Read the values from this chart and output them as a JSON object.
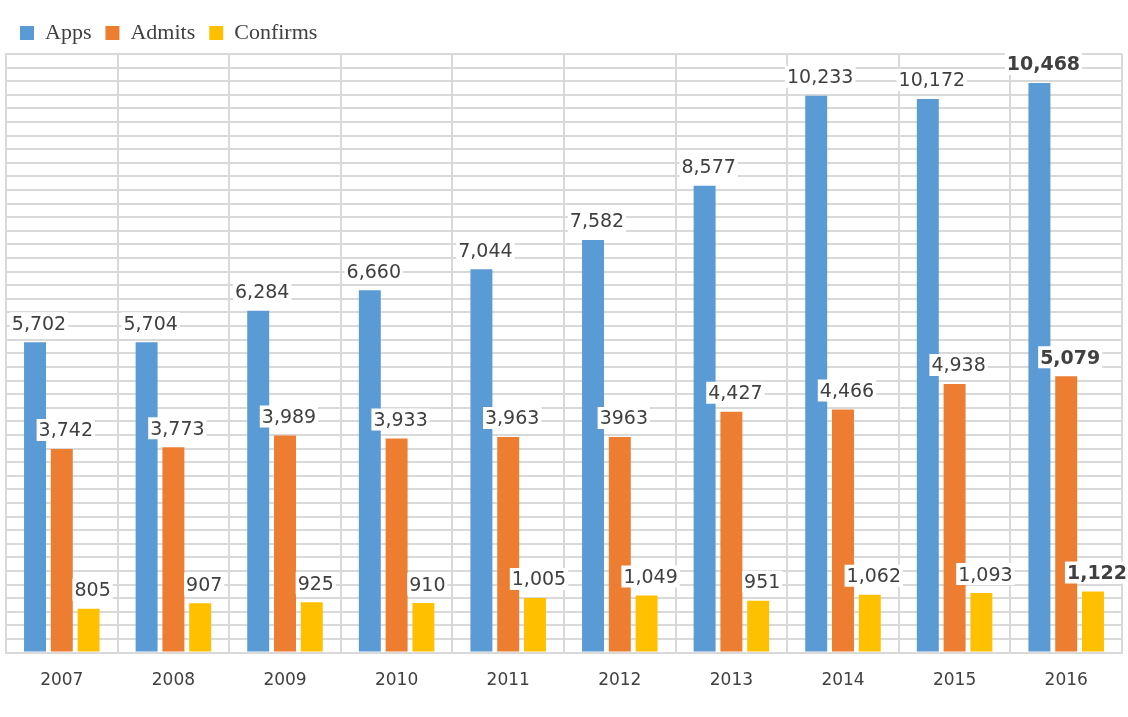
{
  "chart_data": {
    "type": "bar",
    "categories": [
      "2007",
      "2008",
      "2009",
      "2010",
      "2011",
      "2012",
      "2013",
      "2014",
      "2015",
      "2016"
    ],
    "series": [
      {
        "name": "Apps",
        "color": "#5b9bd5",
        "values": [
          5702,
          5704,
          6284,
          6660,
          7044,
          7582,
          8577,
          10233,
          10172,
          10468
        ],
        "value_labels": [
          "5,702",
          "5,704",
          "6,284",
          "6,660",
          "7,044",
          "7,582",
          "8,577",
          "10,233",
          "10,172",
          "10,468"
        ]
      },
      {
        "name": "Admits",
        "color": "#ed7d31",
        "values": [
          3742,
          3773,
          3989,
          3933,
          3963,
          3963,
          4427,
          4466,
          4938,
          5079
        ],
        "value_labels": [
          "3,742",
          "3,773",
          "3,989",
          "3,933",
          "3,963",
          "3963",
          "4,427",
          "4,466",
          "4,938",
          "5,079"
        ]
      },
      {
        "name": "Confirms",
        "color": "#ffc000",
        "values": [
          805,
          907,
          925,
          910,
          1005,
          1049,
          951,
          1062,
          1093,
          1122
        ],
        "value_labels": [
          "805",
          "907",
          "925",
          "910",
          "1,005",
          "1,049",
          "951",
          "1,062",
          "1,093",
          "1,122"
        ]
      }
    ],
    "ylim": [
      0,
      11000
    ],
    "yticks": [
      {
        "value": 0,
        "label": null
      },
      {
        "value": 250,
        "label": null
      },
      {
        "value": 500,
        "label": null
      },
      {
        "value": 750,
        "label": null
      },
      {
        "value": 1000,
        "label": null
      },
      {
        "value": 1250,
        "label": null
      },
      {
        "value": 1500,
        "label": null
      },
      {
        "value": 1750,
        "label": null
      },
      {
        "value": 2000,
        "label": null
      },
      {
        "value": 2250,
        "label": null
      },
      {
        "value": 2500,
        "label": null
      },
      {
        "value": 2750,
        "label": null
      },
      {
        "value": 3000,
        "label": null
      },
      {
        "value": 3250,
        "label": null
      },
      {
        "value": 3500,
        "label": null
      },
      {
        "value": 3750,
        "label": null
      },
      {
        "value": 4000,
        "label": null
      },
      {
        "value": 4250,
        "label": null
      },
      {
        "value": 4500,
        "label": null
      },
      {
        "value": 4750,
        "label": null
      },
      {
        "value": 5000,
        "label": null
      },
      {
        "value": 5250,
        "label": null
      },
      {
        "value": 5500,
        "label": null
      },
      {
        "value": 5750,
        "label": null
      },
      {
        "value": 6000,
        "label": null
      },
      {
        "value": 6250,
        "label": null
      },
      {
        "value": 6500,
        "label": null
      },
      {
        "value": 6750,
        "label": null
      },
      {
        "value": 7000,
        "label": null
      },
      {
        "value": 7250,
        "label": null
      },
      {
        "value": 7500,
        "label": null
      },
      {
        "value": 7750,
        "label": null
      },
      {
        "value": 8000,
        "label": null
      },
      {
        "value": 8250,
        "label": null
      },
      {
        "value": 8500,
        "label": null
      },
      {
        "value": 8750,
        "label": null
      },
      {
        "value": 9000,
        "label": null
      },
      {
        "value": 9250,
        "label": null
      },
      {
        "value": 9500,
        "label": null
      },
      {
        "value": 9750,
        "label": null
      },
      {
        "value": 10000,
        "label": null
      },
      {
        "value": 10250,
        "label": null
      },
      {
        "value": 10500,
        "label": null
      },
      {
        "value": 10750,
        "label": null
      },
      {
        "value": 11000,
        "label": null
      }
    ],
    "tick_labels": "x",
    "grid": true,
    "legend": "top left"
  }
}
